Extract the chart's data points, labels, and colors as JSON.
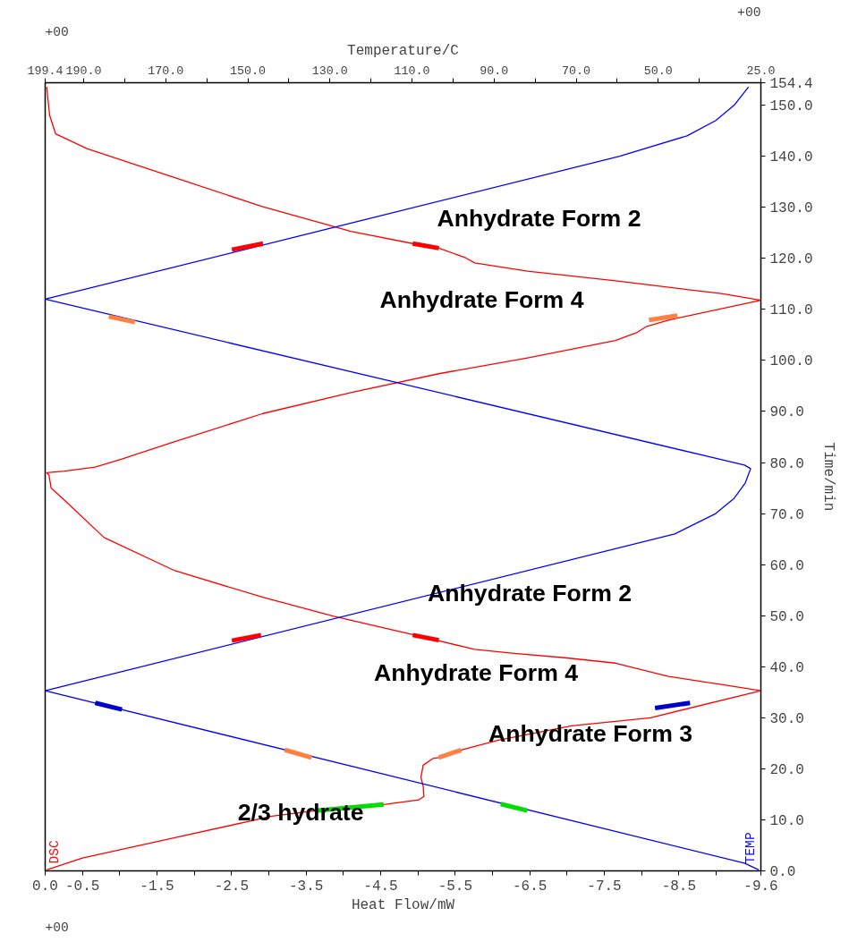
{
  "chart_data": {
    "type": "line",
    "xlabel": "Heat Flow/mW",
    "x2label": "Temperature/C",
    "ylabel": "Time/min",
    "xlim": [
      0,
      -9.6
    ],
    "xticks": [
      {
        "value": 0,
        "label": "0.0"
      },
      {
        "value": -0.5,
        "label": "-0.5"
      },
      {
        "value": -1.0,
        "label": null
      },
      {
        "value": -1.5,
        "label": "-1.5"
      },
      {
        "value": -2.0,
        "label": null
      },
      {
        "value": -2.5,
        "label": "-2.5"
      },
      {
        "value": -3.0,
        "label": null
      },
      {
        "value": -3.5,
        "label": "-3.5"
      },
      {
        "value": -4.0,
        "label": null
      },
      {
        "value": -4.5,
        "label": "-4.5"
      },
      {
        "value": -5.0,
        "label": null
      },
      {
        "value": -5.5,
        "label": "-5.5"
      },
      {
        "value": -6.0,
        "label": null
      },
      {
        "value": -6.5,
        "label": "-6.5"
      },
      {
        "value": -7.0,
        "label": null
      },
      {
        "value": -7.5,
        "label": "-7.5"
      },
      {
        "value": -8.0,
        "label": null
      },
      {
        "value": -8.5,
        "label": "-8.5"
      },
      {
        "value": -9.0,
        "label": null
      },
      {
        "value": -9.6,
        "label": "-9.6"
      }
    ],
    "x2lim": [
      199.4,
      25.0
    ],
    "x2ticks": [
      {
        "value": 199.4,
        "label": "199.4"
      },
      {
        "value": 190,
        "label": "190.0"
      },
      {
        "value": 180,
        "label": null
      },
      {
        "value": 170,
        "label": "170.0"
      },
      {
        "value": 160,
        "label": null
      },
      {
        "value": 150,
        "label": "150.0"
      },
      {
        "value": 140,
        "label": null
      },
      {
        "value": 130,
        "label": "130.0"
      },
      {
        "value": 120,
        "label": null
      },
      {
        "value": 110,
        "label": "110.0"
      },
      {
        "value": 100,
        "label": null
      },
      {
        "value": 90,
        "label": "90.0"
      },
      {
        "value": 80,
        "label": null
      },
      {
        "value": 70,
        "label": "70.0"
      },
      {
        "value": 60,
        "label": null
      },
      {
        "value": 50,
        "label": "50.0"
      },
      {
        "value": 40,
        "label": null
      },
      {
        "value": 25,
        "label": "25.0"
      }
    ],
    "ylim": [
      0,
      154.4
    ],
    "yticks": [
      {
        "value": 0,
        "label": "0.0"
      },
      {
        "value": 10,
        "label": "10.0"
      },
      {
        "value": 20,
        "label": "20.0"
      },
      {
        "value": 30,
        "label": "30.0"
      },
      {
        "value": 40,
        "label": "40.0"
      },
      {
        "value": 50,
        "label": "50.0"
      },
      {
        "value": 60,
        "label": "60.0"
      },
      {
        "value": 70,
        "label": "70.0"
      },
      {
        "value": 80,
        "label": "80.0"
      },
      {
        "value": 90,
        "label": "90.0"
      },
      {
        "value": 100,
        "label": "100.0"
      },
      {
        "value": 110,
        "label": "110.0"
      },
      {
        "value": 120,
        "label": "120.0"
      },
      {
        "value": 130,
        "label": "130.0"
      },
      {
        "value": 140,
        "label": "140.0"
      },
      {
        "value": 150,
        "label": "150.0"
      },
      {
        "value": 154.4,
        "label": "154.4"
      }
    ],
    "grid": false,
    "line_style": "solid",
    "marker": "none",
    "annotations": [
      "+00",
      "+00",
      "+00",
      "Anhydrate Form 2",
      "Anhydrate Form 4",
      "Anhydrate Form 2",
      "Anhydrate Form 4",
      "Anhydrate Form 3",
      "2/3 hydrate"
    ],
    "series": [
      {
        "name": "DSC",
        "color": "#ff0000",
        "x": [
          -0.02,
          -0.5,
          -1.74,
          -3.04,
          -3.63,
          -4.54,
          -5.01,
          -5.08,
          -5.07,
          -5.04,
          -5.07,
          -5.2,
          -5.28,
          -5.58,
          -6.08,
          -7.06,
          -8.12,
          -9.6,
          -9.07,
          -8.36,
          -7.65,
          -6.94,
          -6.29,
          -5.76,
          -5.1,
          -3.87,
          -2.92,
          -1.74,
          -0.79,
          -0.26,
          -0.08,
          -0.05,
          -0.02,
          -0.26,
          -0.67,
          -1.03,
          -1.74,
          -2.92,
          -4.1,
          -5.28,
          -6.47,
          -7.65,
          -7.94,
          -8.06,
          -8.36,
          -9.6,
          -9.07,
          -8.6,
          -7.65,
          -6.47,
          -5.76,
          -5.64,
          -5.28,
          -4.93,
          -4.1,
          -2.92,
          -1.74,
          -0.56,
          -0.14,
          -0.06,
          -0.02
        ],
        "values": [
          0.2,
          2.5,
          6.5,
          10.7,
          11.8,
          13.0,
          13.9,
          14.6,
          16.7,
          18.3,
          20.7,
          22.0,
          22.2,
          23.7,
          25.6,
          28.4,
          30.0,
          35.3,
          36.5,
          38.1,
          40.7,
          41.8,
          42.6,
          43.4,
          45.7,
          49.9,
          53.6,
          58.8,
          65.3,
          72.6,
          75.0,
          77.6,
          78.0,
          78.3,
          79.1,
          80.7,
          84.1,
          89.6,
          93.7,
          97.4,
          100.5,
          103.9,
          105.5,
          106.6,
          107.9,
          111.8,
          113.1,
          113.9,
          115.6,
          117.5,
          119.1,
          120.1,
          122.0,
          122.9,
          125.3,
          130.1,
          135.8,
          141.5,
          144.4,
          148.0,
          153.6
        ]
      },
      {
        "name": "TEMP",
        "color": "#0000ff",
        "axis": "x2",
        "x": [
          25.5,
          29,
          199.4,
          46,
          36,
          31.5,
          28.8,
          27.5,
          29,
          199.4,
          59.4,
          43,
          36,
          31.5,
          28
        ],
        "values": [
          0.2,
          1.5,
          35.3,
          66,
          70,
          73,
          76,
          78.8,
          79.5,
          112.0,
          140,
          144,
          147,
          150,
          153.6
        ]
      },
      {
        "color": "#ff0000",
        "axis": "x2",
        "x": [
          153.9,
          146.3
        ],
        "values": [
          121.7,
          122.9
        ]
      },
      {
        "color": "#ff8040",
        "axis": "x2",
        "x": [
          183.9,
          177.5
        ],
        "values": [
          108.6,
          107.5
        ]
      },
      {
        "color": "#ff0000",
        "axis": "x2",
        "x": [
          153.9,
          146.8
        ],
        "values": [
          45.1,
          46.2
        ]
      },
      {
        "color": "#0000cc",
        "axis": "x2",
        "x": [
          187.2,
          180.7
        ],
        "values": [
          32.9,
          31.6
        ]
      },
      {
        "color": "#ff8040",
        "axis": "x2",
        "x": [
          141.0,
          134.5
        ],
        "values": [
          23.7,
          22.2
        ]
      },
      {
        "color": "#00dd00",
        "axis": "x2",
        "x": [
          88.4,
          81.9
        ],
        "values": [
          13.1,
          11.8
        ]
      },
      {
        "color": "#ff0000",
        "x": [
          -4.93,
          -5.28
        ],
        "values": [
          122.9,
          122.0
        ]
      },
      {
        "color": "#ff8040",
        "x": [
          -8.1,
          -8.48
        ],
        "values": [
          107.9,
          108.8
        ]
      },
      {
        "color": "#ff0000",
        "x": [
          -4.93,
          -5.28
        ],
        "values": [
          46.2,
          45.2
        ]
      },
      {
        "color": "#0000cc",
        "x": [
          -8.18,
          -8.65
        ],
        "values": [
          31.9,
          32.9
        ]
      },
      {
        "color": "#ff8040",
        "x": [
          -5.28,
          -5.58
        ],
        "values": [
          22.2,
          23.7
        ]
      },
      {
        "color": "#00dd00",
        "x": [
          -3.63,
          -4.54
        ],
        "values": [
          11.8,
          13.0
        ]
      }
    ]
  }
}
